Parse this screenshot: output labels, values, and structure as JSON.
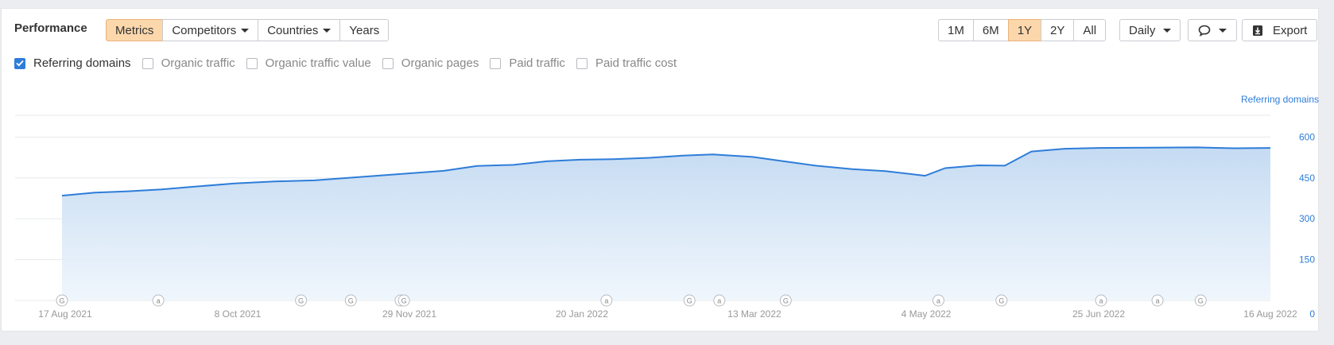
{
  "header": {
    "title": "Performance",
    "view_tabs": [
      {
        "label": "Metrics",
        "active": true,
        "has_caret": false
      },
      {
        "label": "Competitors",
        "active": false,
        "has_caret": true
      },
      {
        "label": "Countries",
        "active": false,
        "has_caret": true
      },
      {
        "label": "Years",
        "active": false,
        "has_caret": false
      }
    ],
    "range_tabs": [
      {
        "label": "1M",
        "active": false
      },
      {
        "label": "6M",
        "active": false
      },
      {
        "label": "1Y",
        "active": true
      },
      {
        "label": "2Y",
        "active": false
      },
      {
        "label": "All",
        "active": false
      }
    ],
    "granularity": "Daily",
    "annotation_icon": "comment-icon",
    "export_label": "Export",
    "export_icon": "download-icon"
  },
  "metrics": [
    {
      "label": "Referring domains",
      "checked": true
    },
    {
      "label": "Organic traffic",
      "checked": false
    },
    {
      "label": "Organic traffic value",
      "checked": false
    },
    {
      "label": "Organic pages",
      "checked": false
    },
    {
      "label": "Paid traffic",
      "checked": false
    },
    {
      "label": "Paid traffic cost",
      "checked": false
    }
  ],
  "colors": {
    "accent": "#2e7dd9",
    "active_tab": "#fcd7ab",
    "fill": "#cfe1f5"
  },
  "chart_data": {
    "type": "area",
    "ylabel": "Referring domains",
    "y_axis_position": "right",
    "yticks": [
      0,
      150,
      300,
      450,
      600
    ],
    "ylim": [
      0,
      600
    ],
    "x_tick_labels": [
      "17 Aug 2021",
      "8 Oct 2021",
      "29 Nov 2021",
      "20 Jan 2022",
      "13 Mar 2022",
      "4 May 2022",
      "25 Jun 2022",
      "16 Aug 2022"
    ],
    "grid": true,
    "series": [
      {
        "name": "Referring domains",
        "color": "#2e7dd9",
        "x": [
          "2021-08-17",
          "2021-08-27",
          "2021-09-06",
          "2021-09-16",
          "2021-09-26",
          "2021-10-08",
          "2021-10-20",
          "2021-11-01",
          "2021-11-12",
          "2021-11-29",
          "2021-12-10",
          "2021-12-20",
          "2021-12-31",
          "2022-01-10",
          "2022-01-20",
          "2022-01-30",
          "2022-02-10",
          "2022-02-20",
          "2022-03-01",
          "2022-03-13",
          "2022-03-22",
          "2022-04-01",
          "2022-04-12",
          "2022-04-22",
          "2022-05-04",
          "2022-05-10",
          "2022-05-20",
          "2022-05-28",
          "2022-06-05",
          "2022-06-15",
          "2022-06-25",
          "2022-07-10",
          "2022-07-25",
          "2022-08-05",
          "2022-08-16"
        ],
        "values": [
          385,
          396,
          401,
          408,
          418,
          430,
          437,
          441,
          451,
          466,
          476,
          494,
          498,
          511,
          517,
          519,
          524,
          532,
          536,
          527,
          512,
          495,
          482,
          475,
          458,
          486,
          496,
          495,
          547,
          557,
          560,
          561,
          562,
          559,
          560
        ]
      }
    ],
    "annotations": [
      {
        "label": "G",
        "x": "2021-08-17"
      },
      {
        "label": "a",
        "x": "2021-09-15"
      },
      {
        "label": "G",
        "x": "2021-10-28"
      },
      {
        "label": "G",
        "x": "2021-11-12"
      },
      {
        "label": "G",
        "x": "2021-11-27"
      },
      {
        "label": "G",
        "x": "2021-11-28"
      },
      {
        "label": "a",
        "x": "2022-01-28"
      },
      {
        "label": "G",
        "x": "2022-02-22"
      },
      {
        "label": "a",
        "x": "2022-03-03"
      },
      {
        "label": "G",
        "x": "2022-03-23"
      },
      {
        "label": "a",
        "x": "2022-05-08"
      },
      {
        "label": "G",
        "x": "2022-05-27"
      },
      {
        "label": "a",
        "x": "2022-06-26"
      },
      {
        "label": "a",
        "x": "2022-07-13"
      },
      {
        "label": "G",
        "x": "2022-07-26"
      }
    ]
  }
}
